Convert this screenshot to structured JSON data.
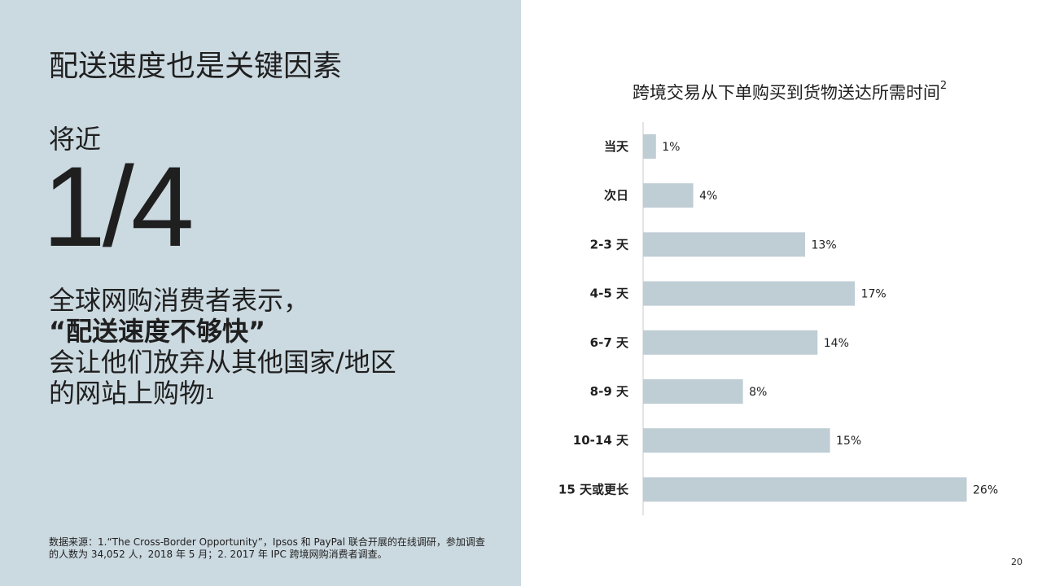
{
  "left": {
    "title": "配送速度也是关键因素",
    "stat_prefix": "将近",
    "stat_number": "1/4",
    "desc_line1": "全球网购消费者表示，",
    "desc_line2": "“配送速度不够快”",
    "desc_line3": "会让他们放弃从其他国家/地区",
    "desc_line4": "的网站上购物",
    "desc_sup": "1",
    "source_line1": "数据来源：1.“The Cross-Border Opportunity”，Ipsos 和 PayPal 联合开展的在线调研，参加调查",
    "source_line2": "的人数为 34,052 人，2018 年 5 月；2. 2017 年 IPC 跨境网购消费者调查。"
  },
  "chart_title": "跨境交易从下单购买到货物送达所需时间",
  "chart_title_sup": "2",
  "page_number": "20",
  "colors": {
    "left_panel_bg": "#cbd9e0",
    "bar": "#bfcdd5",
    "axis": "#c8c8c8"
  },
  "chart_data": {
    "type": "bar",
    "orientation": "horizontal",
    "title": "跨境交易从下单购买到货物送达所需时间",
    "categories": [
      "当天",
      "次日",
      "2-3 天",
      "4-5 天",
      "6-7 天",
      "8-9 天",
      "10-14 天",
      "15 天或更长"
    ],
    "values": [
      1,
      4,
      13,
      17,
      14,
      8,
      15,
      26
    ],
    "value_labels": [
      "1%",
      "4%",
      "13%",
      "17%",
      "14%",
      "8%",
      "15%",
      "26%"
    ],
    "unit": "%",
    "xlim": [
      0,
      26
    ],
    "grid": false
  }
}
